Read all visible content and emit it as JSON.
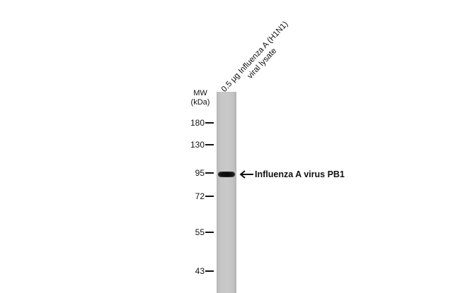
{
  "lane": {
    "line1": "0.5 μg Influenza A (H1N1)",
    "line2": "viral lysate"
  },
  "mw_header": {
    "line1": "MW",
    "line2": "(kDa)"
  },
  "markers": [
    "180",
    "130",
    "95",
    "72",
    "55",
    "43"
  ],
  "band": {
    "label": "Influenza A virus PB1",
    "arrow_icon": "left-arrow-icon"
  }
}
